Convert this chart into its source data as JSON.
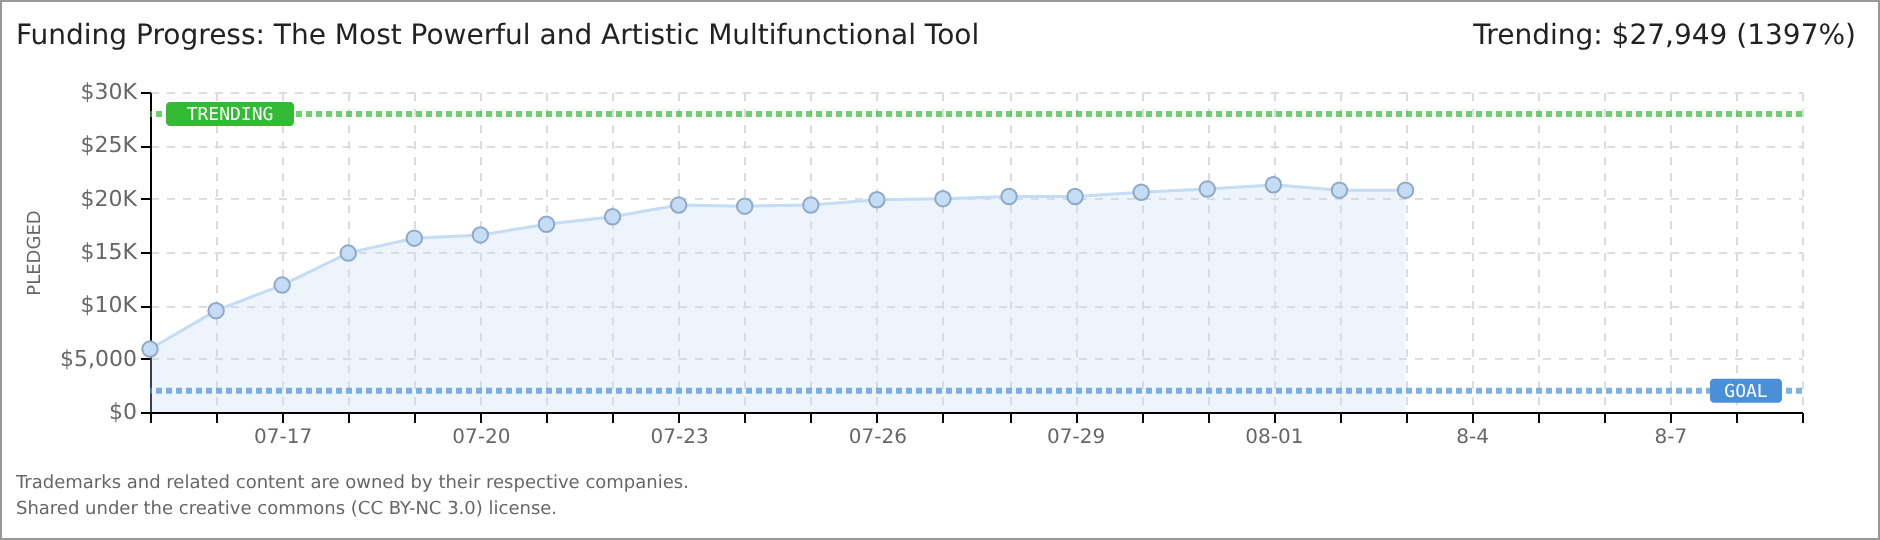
{
  "chart_data": {
    "type": "area",
    "title": "Funding Progress: The Most Powerful and Artistic Multifunctional Tool",
    "subtitle": "Trending: $27,949 (1397%)",
    "ylabel": "PLEDGED",
    "x": [
      "--07-15",
      "--07-16",
      "--07-17",
      "--07-18",
      "--07-19",
      "--07-20",
      "--07-21",
      "--07-22",
      "--07-23",
      "--07-24",
      "--07-25",
      "--07-26",
      "--07-27",
      "--07-28",
      "--07-29",
      "--07-30",
      "--07-31",
      "--08-01",
      "--08-02",
      "--08-03"
    ],
    "series": [
      {
        "color": "#c4dcf4",
        "values": [
          5900,
          9500,
          11900,
          14900,
          16300,
          16600,
          17600,
          18300,
          19400,
          19300,
          19400,
          19900,
          20000,
          20200,
          20200,
          20600,
          20900,
          21300,
          20800,
          20800
        ]
      }
    ],
    "xlim": [
      "--07-15",
      "--08-09"
    ],
    "xticks": [
      {
        "value": "--07-15",
        "label": null
      },
      {
        "value": "--07-16",
        "label": null
      },
      {
        "value": "--07-17",
        "label": "07-17"
      },
      {
        "value": "--07-18",
        "label": null
      },
      {
        "value": "--07-19",
        "label": null
      },
      {
        "value": "--07-20",
        "label": "07-20"
      },
      {
        "value": "--07-21",
        "label": null
      },
      {
        "value": "--07-22",
        "label": null
      },
      {
        "value": "--07-23",
        "label": "07-23"
      },
      {
        "value": "--07-24",
        "label": null
      },
      {
        "value": "--07-25",
        "label": null
      },
      {
        "value": "--07-26",
        "label": "07-26"
      },
      {
        "value": "--07-27",
        "label": null
      },
      {
        "value": "--07-28",
        "label": null
      },
      {
        "value": "--07-29",
        "label": "07-29"
      },
      {
        "value": "--07-30",
        "label": null
      },
      {
        "value": "--07-31",
        "label": null
      },
      {
        "value": "--08-01",
        "label": "08-01"
      },
      {
        "value": "--08-02",
        "label": null
      },
      {
        "value": "--08-03",
        "label": null
      },
      {
        "value": "--08-04",
        "label": "8-4"
      },
      {
        "value": "--08-05",
        "label": null
      },
      {
        "value": "--08-06",
        "label": null
      },
      {
        "value": "--08-07",
        "label": "8-7"
      },
      {
        "value": "--08-08",
        "label": null
      },
      {
        "value": "--08-09",
        "label": null
      }
    ],
    "ylim": [
      0,
      30000
    ],
    "yticks": [
      {
        "value": 0,
        "label": "$0"
      },
      {
        "value": 5000,
        "label": "$5,000"
      },
      {
        "value": 10000,
        "label": "$10K"
      },
      {
        "value": 15000,
        "label": "$15K"
      },
      {
        "value": 20000,
        "label": "$20K"
      },
      {
        "value": 25000,
        "label": "$25K"
      },
      {
        "value": 30000,
        "label": "$30K"
      }
    ],
    "ref_lines": [
      {
        "axis": "y",
        "value": 27949,
        "label": "TRENDING",
        "color": "#33bb33",
        "line_style": "dotted"
      },
      {
        "axis": "y",
        "value": 2000,
        "label": "GOAL",
        "color": "#4a90d9",
        "line_style": "dotted"
      }
    ],
    "grid": true,
    "marker": "circle",
    "line_style": "solid",
    "annotations": [
      "Trademarks and related content are owned by their respective companies.",
      "Shared under the creative commons (CC BY-NC 3.0) license."
    ]
  }
}
